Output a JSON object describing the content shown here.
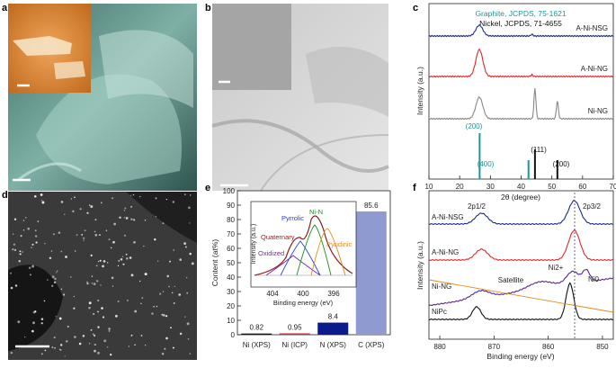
{
  "panels": {
    "a": {
      "label": "a"
    },
    "b": {
      "label": "b"
    },
    "c": {
      "label": "c",
      "legend_graphite": "Graphite, JCPDS, 75-1621",
      "legend_nickel": "Nickel, JCPDS, 71-4655",
      "colors": {
        "graphite": "#17979a",
        "nickel": "#111111"
      }
    },
    "d": {
      "label": "d"
    },
    "e": {
      "label": "e",
      "inset": {
        "peaks": [
          "Pyrrolic",
          "Ni-N",
          "Quaternary",
          "Pyridinic",
          "Oxidized"
        ],
        "xticks": [
          "404",
          "400",
          "396"
        ],
        "xlabel": "Binding energy (eV)",
        "ylabel": "Intensity (a.u.)"
      }
    },
    "f": {
      "label": "f",
      "sub_left": "2p1/2",
      "sub_right": "2p3/2",
      "annot": {
        "satellite": "Satellite",
        "ni2": "Ni2+",
        "ni0": "Ni0"
      }
    }
  },
  "chart_data": [
    {
      "type": "line",
      "panel": "c",
      "xlabel": "2θ (degree)",
      "ylabel": "Intensity (a.u.)",
      "xlim": [
        10,
        70
      ],
      "xticks": [
        10,
        20,
        30,
        40,
        50,
        60,
        70
      ],
      "series": [
        {
          "name": "A-Ni-NSG",
          "color": "#1c2a8a",
          "peaks": [
            26.4,
            43.5
          ]
        },
        {
          "name": "A-Ni-NG",
          "color": "#e0282a",
          "peaks": [
            26.4,
            43.5
          ]
        },
        {
          "name": "Ni-NG",
          "color": "#888888",
          "peaks": [
            26.4,
            44.5,
            51.8
          ]
        }
      ],
      "reference_lines": [
        {
          "x": 26.5,
          "label": "(200)",
          "color": "#17979a"
        },
        {
          "x": 42.4,
          "label": "(400)",
          "color": "#17979a"
        },
        {
          "x": 44.5,
          "label": "(111)",
          "color": "#111111"
        },
        {
          "x": 51.8,
          "label": "(200)",
          "color": "#111111"
        }
      ]
    },
    {
      "type": "bar",
      "panel": "e",
      "ylabel": "Content (at%)",
      "ylim": [
        0,
        100
      ],
      "yticks": [
        0,
        10,
        20,
        30,
        40,
        50,
        60,
        70,
        80,
        90,
        100
      ],
      "categories": [
        "Ni (XPS)",
        "Ni (ICP)",
        "N (XPS)",
        "C (XPS)"
      ],
      "values": [
        0.82,
        0.95,
        8.4,
        85.6
      ],
      "value_labels": [
        "0.82",
        "0.95",
        "8.4",
        "85.6"
      ],
      "colors": [
        "#111111",
        "#e0282a",
        "#0b1a8c",
        "#8f9bd0"
      ]
    },
    {
      "type": "line",
      "panel": "f",
      "xlabel": "Binding energy (eV)",
      "ylabel": "Intensity (a.u.)",
      "xlim": [
        882,
        848
      ],
      "xticks": [
        880,
        870,
        860,
        850
      ],
      "series": [
        {
          "name": "A-Ni-NSG",
          "color": "#1c2a8a"
        },
        {
          "name": "A-Ni-NG",
          "color": "#e0282a"
        },
        {
          "name": "Ni-NG",
          "color": "#5a2a8a"
        },
        {
          "name": "NiPc",
          "color": "#111111"
        }
      ]
    }
  ]
}
